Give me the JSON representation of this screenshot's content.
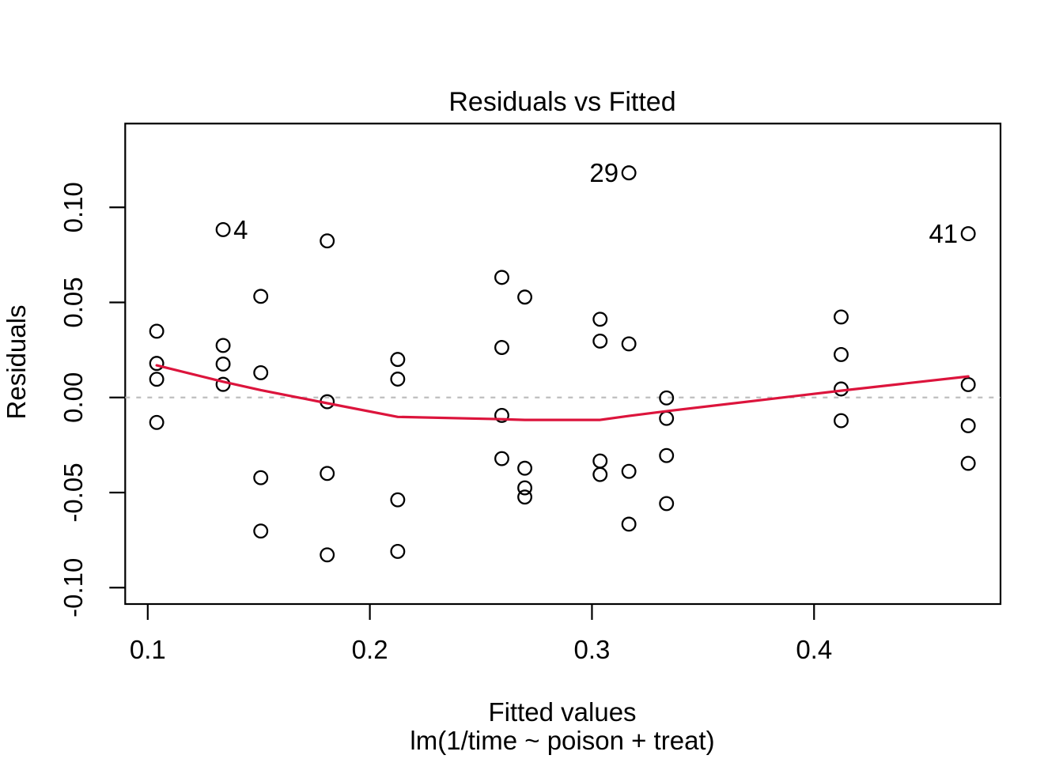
{
  "chart_data": {
    "type": "scatter",
    "title": "Residuals vs Fitted",
    "xlabel": "Fitted values",
    "xlabel_sub": "lm(1/time ~ poison + treat)",
    "ylabel": "Residuals",
    "x_ticks": [
      {
        "value": 0.1,
        "label": "0.1"
      },
      {
        "value": 0.2,
        "label": "0.2"
      },
      {
        "value": 0.3,
        "label": "0.3"
      },
      {
        "value": 0.4,
        "label": "0.4"
      }
    ],
    "y_ticks": [
      {
        "value": -0.1,
        "label": "-0.10"
      },
      {
        "value": -0.05,
        "label": "-0.05"
      },
      {
        "value": 0.0,
        "label": "0.00"
      },
      {
        "value": 0.05,
        "label": "0.05"
      },
      {
        "value": 0.1,
        "label": "0.10"
      }
    ],
    "xlim": [
      0.08985,
      0.48395
    ],
    "ylim": [
      -0.10864,
      0.14407
    ],
    "grid": false,
    "zero_line": {
      "y": 0,
      "style": "dotted"
    },
    "points": [
      [
        0.10403,
        0.01793
      ],
      [
        0.10403,
        -0.01312
      ],
      [
        0.10403,
        0.00961
      ],
      [
        0.10403,
        0.03486
      ],
      [
        0.13393,
        0.08829
      ],
      [
        0.13393,
        0.00691
      ],
      [
        0.13393,
        0.01758
      ],
      [
        0.13393,
        0.02736
      ],
      [
        0.15089,
        -0.04219
      ],
      [
        0.15089,
        0.01304
      ],
      [
        0.15089,
        0.05319
      ],
      [
        0.15089,
        -0.07024
      ],
      [
        0.1808,
        -0.00222
      ],
      [
        0.1808,
        -0.08276
      ],
      [
        0.1808,
        -0.03995
      ],
      [
        0.1808,
        0.08236
      ],
      [
        0.21255,
        0.02001
      ],
      [
        0.21255,
        0.00967
      ],
      [
        0.21255,
        -0.05382
      ],
      [
        0.21255,
        -0.08097
      ],
      [
        0.25942,
        -0.03214
      ],
      [
        0.25942,
        0.0263
      ],
      [
        0.25942,
        0.06316
      ],
      [
        0.25942,
        -0.00942
      ],
      [
        0.26977,
        0.05281
      ],
      [
        0.26977,
        -0.04754
      ],
      [
        0.26977,
        -0.05237
      ],
      [
        0.26977,
        -0.03721
      ],
      [
        0.30367,
        0.02967
      ],
      [
        0.30367,
        -0.0334
      ],
      [
        0.30367,
        -0.04051
      ],
      [
        0.30367,
        0.04116
      ],
      [
        0.31663,
        -0.03885
      ],
      [
        0.31663,
        0.0282
      ],
      [
        0.31663,
        -0.06663
      ],
      [
        0.31663,
        0.11815
      ],
      [
        0.33357,
        -0.00024
      ],
      [
        0.33357,
        -0.0558
      ],
      [
        0.33357,
        -0.01099
      ],
      [
        0.33357,
        -0.03054
      ],
      [
        0.41219,
        0.02259
      ],
      [
        0.41219,
        -0.01219
      ],
      [
        0.41219,
        0.00447
      ],
      [
        0.41219,
        0.04235
      ],
      [
        0.46941,
        -0.01486
      ],
      [
        0.46941,
        0.00678
      ],
      [
        0.46941,
        0.08615
      ],
      [
        0.46941,
        -0.03463
      ]
    ],
    "labeled_points": [
      {
        "label": "29",
        "x": 0.31663,
        "y": 0.11815,
        "side": "left"
      },
      {
        "label": "4",
        "x": 0.13393,
        "y": 0.08829,
        "side": "right"
      },
      {
        "label": "41",
        "x": 0.46941,
        "y": 0.08615,
        "side": "left"
      }
    ],
    "smooth_line": [
      [
        0.10403,
        0.0169
      ],
      [
        0.13393,
        0.0083
      ],
      [
        0.15089,
        0.0039
      ],
      [
        0.1808,
        -0.003
      ],
      [
        0.21255,
        -0.0102
      ],
      [
        0.25942,
        -0.0114
      ],
      [
        0.26977,
        -0.0118
      ],
      [
        0.30367,
        -0.0118
      ],
      [
        0.31663,
        -0.0097
      ],
      [
        0.33357,
        -0.0072
      ],
      [
        0.41219,
        0.0036
      ],
      [
        0.46941,
        0.0111
      ]
    ],
    "legend": null,
    "colors": {
      "points": "#000000",
      "smooth": "#dc143c",
      "zero_line": "#bebebe",
      "axis": "#000000",
      "background": "#ffffff"
    }
  }
}
